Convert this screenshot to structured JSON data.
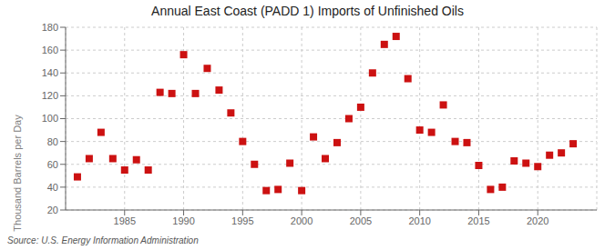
{
  "chart_data": {
    "type": "scatter",
    "title": "Annual East Coast (PADD 1) Imports of Unfinished Oils",
    "ylabel": "Thousand Barrels per Day",
    "annotations": [
      "Source: U.S. Energy Information Administration"
    ],
    "color": "#cc1111",
    "marker": "square",
    "grid": true,
    "xlim": [
      1980,
      2025
    ],
    "xticks": [
      1985,
      1990,
      1995,
      2000,
      2005,
      2010,
      2015,
      2020
    ],
    "ylim": [
      20,
      180
    ],
    "yticks": [
      20,
      40,
      60,
      80,
      100,
      120,
      140,
      160,
      180
    ],
    "x": [
      1981,
      1982,
      1983,
      1984,
      1985,
      1986,
      1987,
      1988,
      1989,
      1990,
      1991,
      1992,
      1993,
      1994,
      1995,
      1996,
      1997,
      1998,
      1999,
      2000,
      2001,
      2002,
      2003,
      2004,
      2005,
      2006,
      2007,
      2008,
      2009,
      2010,
      2011,
      2012,
      2013,
      2014,
      2015,
      2016,
      2017,
      2018,
      2019,
      2020,
      2021,
      2022,
      2023
    ],
    "values": [
      49,
      65,
      88,
      65,
      55,
      64,
      55,
      123,
      122,
      156,
      122,
      144,
      125,
      105,
      80,
      60,
      37,
      38,
      61,
      37,
      84,
      65,
      79,
      100,
      110,
      140,
      165,
      172,
      135,
      90,
      88,
      112,
      80,
      79,
      59,
      38,
      40,
      63,
      61,
      58,
      68,
      70,
      78
    ]
  }
}
